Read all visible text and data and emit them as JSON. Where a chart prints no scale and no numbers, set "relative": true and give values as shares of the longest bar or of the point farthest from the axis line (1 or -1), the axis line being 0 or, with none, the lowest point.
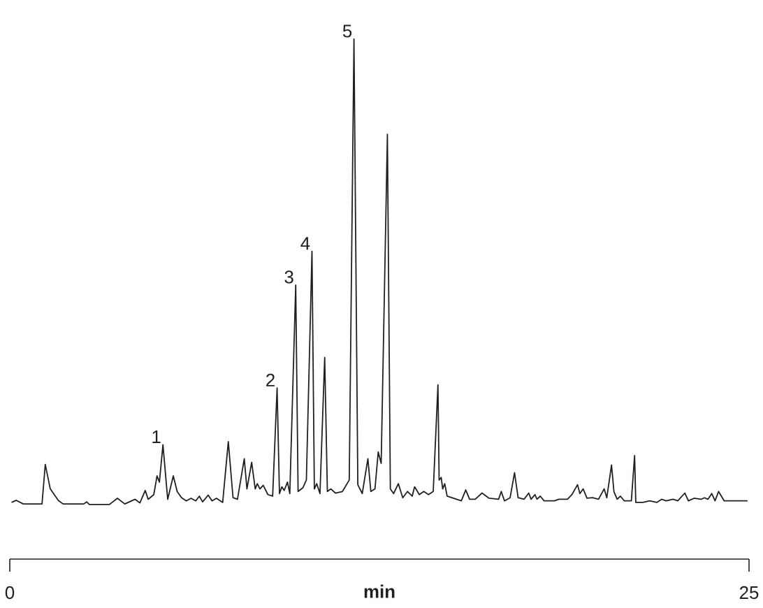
{
  "chart_data": {
    "type": "line",
    "relative": true,
    "xlabel": "min",
    "tick_labels": "x",
    "xlim": [
      0,
      25
    ],
    "xticks": [
      0,
      25
    ],
    "x": [
      0.06,
      0.22,
      0.46,
      1.09,
      1.2,
      1.37,
      1.64,
      1.8,
      2.5,
      2.6,
      2.69,
      3.37,
      3.64,
      3.89,
      4.24,
      4.4,
      4.58,
      4.68,
      4.87,
      4.98,
      5.06,
      5.18,
      5.34,
      5.53,
      5.66,
      5.81,
      5.97,
      6.13,
      6.29,
      6.41,
      6.52,
      6.71,
      6.84,
      6.99,
      7.2,
      7.39,
      7.55,
      7.7,
      7.93,
      8.02,
      8.18,
      8.3,
      8.37,
      8.46,
      8.57,
      8.73,
      8.89,
      9.04,
      9.12,
      9.2,
      9.28,
      9.39,
      9.47,
      9.67,
      9.75,
      9.91,
      10.03,
      10.22,
      10.3,
      10.38,
      10.49,
      10.65,
      10.74,
      10.86,
      11.01,
      11.25,
      11.48,
      11.64,
      11.77,
      11.92,
      12.11,
      12.21,
      12.35,
      12.46,
      12.56,
      12.77,
      12.87,
      12.98,
      13.14,
      13.29,
      13.45,
      13.61,
      13.69,
      13.85,
      14.0,
      14.16,
      14.32,
      14.48,
      14.52,
      14.59,
      14.64,
      14.71,
      14.79,
      15.11,
      15.27,
      15.42,
      15.55,
      15.74,
      15.97,
      16.21,
      16.53,
      16.62,
      16.73,
      16.92,
      17.07,
      17.19,
      17.39,
      17.55,
      17.63,
      17.76,
      17.83,
      17.94,
      18.07,
      18.42,
      18.57,
      18.86,
      19.01,
      19.2,
      19.28,
      19.39,
      19.52,
      19.71,
      19.91,
      20.1,
      20.19,
      20.35,
      20.43,
      20.54,
      20.65,
      20.78,
      21.02,
      21.13,
      21.17,
      21.41,
      21.64,
      21.88,
      22.04,
      22.2,
      22.43,
      22.59,
      22.83,
      22.95,
      23.14,
      23.38,
      23.49,
      23.61,
      23.74,
      23.85,
      23.97,
      24.16,
      24.95
    ],
    "series": [
      {
        "color": "#231f20",
        "values": [
          0.109,
          0.113,
          0.106,
          0.106,
          0.182,
          0.135,
          0.113,
          0.106,
          0.106,
          0.11,
          0.105,
          0.105,
          0.117,
          0.106,
          0.115,
          0.108,
          0.132,
          0.115,
          0.124,
          0.16,
          0.148,
          0.22,
          0.115,
          0.16,
          0.13,
          0.118,
          0.112,
          0.117,
          0.112,
          0.121,
          0.11,
          0.123,
          0.112,
          0.117,
          0.109,
          0.226,
          0.118,
          0.115,
          0.193,
          0.135,
          0.186,
          0.135,
          0.145,
          0.135,
          0.142,
          0.124,
          0.121,
          0.329,
          0.126,
          0.139,
          0.132,
          0.148,
          0.126,
          0.527,
          0.13,
          0.137,
          0.152,
          0.592,
          0.135,
          0.145,
          0.126,
          0.388,
          0.13,
          0.135,
          0.127,
          0.13,
          0.152,
          1,
          0.143,
          0.126,
          0.193,
          0.13,
          0.135,
          0.206,
          0.184,
          0.817,
          0.135,
          0.126,
          0.145,
          0.118,
          0.13,
          0.121,
          0.139,
          0.124,
          0.13,
          0.124,
          0.13,
          0.335,
          0.152,
          0.157,
          0.135,
          0.145,
          0.121,
          0.115,
          0.112,
          0.133,
          0.115,
          0.115,
          0.127,
          0.117,
          0.115,
          0.13,
          0.112,
          0.118,
          0.166,
          0.118,
          0.115,
          0.127,
          0.115,
          0.124,
          0.115,
          0.121,
          0.112,
          0.112,
          0.115,
          0.115,
          0.124,
          0.143,
          0.126,
          0.135,
          0.117,
          0.118,
          0.115,
          0.135,
          0.118,
          0.181,
          0.13,
          0.115,
          0.121,
          0.112,
          0.112,
          0.199,
          0.109,
          0.109,
          0.112,
          0.109,
          0.115,
          0.112,
          0.115,
          0.112,
          0.127,
          0.112,
          0.117,
          0.115,
          0.118,
          0.115,
          0.126,
          0.112,
          0.13,
          0.112,
          0.112
        ]
      }
    ],
    "annotations": [
      {
        "text": "1",
        "x": 5.18,
        "y": 0.22
      },
      {
        "text": "2",
        "x": 9.04,
        "y": 0.329
      },
      {
        "text": "3",
        "x": 9.67,
        "y": 0.527
      },
      {
        "text": "4",
        "x": 10.22,
        "y": 0.592
      },
      {
        "text": "5",
        "x": 11.64,
        "y": 1
      }
    ]
  }
}
